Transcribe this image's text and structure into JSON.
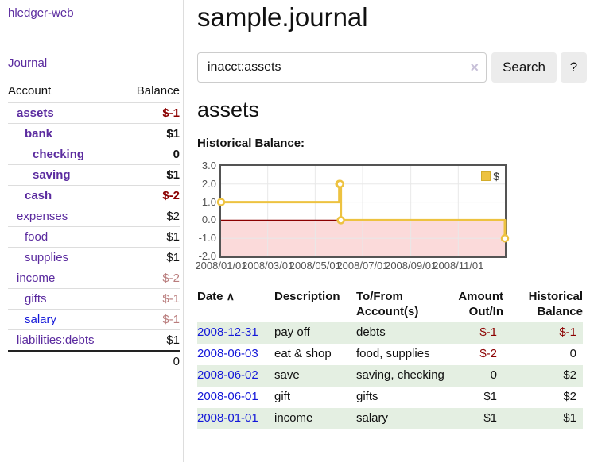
{
  "colors": {
    "purple": "#5b2b9f",
    "blue": "#1317d9",
    "negative": "#8b0000",
    "negative_dim": "#b97c7c",
    "rowgreen": "#e4efe2",
    "rowline": "#dddddd",
    "divider": "#dddddd",
    "gold": "#EDC240",
    "chartborder": "#545454",
    "tick": "#545454"
  },
  "sidebar": {
    "app_title": "hledger-web",
    "nav": {
      "journal_label": "Journal"
    },
    "accounts_table": {
      "headers": {
        "account": "Account",
        "balance": "Balance"
      },
      "rows": [
        {
          "name": "assets",
          "balance": "$-1"
        },
        {
          "name": "bank",
          "balance": "$1"
        },
        {
          "name": "checking",
          "balance": "0"
        },
        {
          "name": "saving",
          "balance": "$1"
        },
        {
          "name": "cash",
          "balance": "$-2"
        },
        {
          "name": "expenses",
          "balance": "$2"
        },
        {
          "name": "food",
          "balance": "$1"
        },
        {
          "name": "supplies",
          "balance": "$1"
        },
        {
          "name": "income",
          "balance": "$-2"
        },
        {
          "name": "gifts",
          "balance": "$-1"
        },
        {
          "name": "salary",
          "balance": "$-1"
        },
        {
          "name": "liabilities:debts",
          "balance": "$1"
        }
      ],
      "total": "0"
    }
  },
  "main": {
    "page_title": "sample.journal",
    "search": {
      "query": "inacct:assets",
      "clear_icon": "×",
      "search_button_label": "Search",
      "help_button_label": "?"
    },
    "account_heading": "assets",
    "chart": {
      "title": "Historical Balance:",
      "legend": {
        "label": "$"
      },
      "chart_data": {
        "type": "line",
        "style": "step",
        "title": "Historical Balance:",
        "legend_position": "top-right",
        "series": [
          {
            "name": "$",
            "points": [
              [
                "2008-01-01",
                1
              ],
              [
                "2008-06-01",
                2
              ],
              [
                "2008-06-02",
                2
              ],
              [
                "2008-06-03",
                0
              ],
              [
                "2008-12-31",
                -1
              ]
            ]
          }
        ],
        "x_start": "2008/01/01",
        "x_ticks": [
          "2008/01/01",
          "2008/03/01",
          "2008/05/01",
          "2008/07/01",
          "2008/09/01",
          "2008/11/01"
        ],
        "y_ticks": [
          3.0,
          2.0,
          1.0,
          0.0,
          -1.0,
          -2.0
        ],
        "ylim": [
          -2,
          3
        ],
        "xlim_days": [
          0,
          365
        ],
        "grid": true,
        "negative_region_shaded": true,
        "line_color": "#EDC240",
        "negative_fill": "#fbdada",
        "zero_line_color": "#8b0000",
        "grid_color": "#e8e8e8"
      }
    },
    "register": {
      "headers": {
        "date": "Date",
        "sort_icon": "∧",
        "description": "Description",
        "account": "To/From Account(s)",
        "amount": "Amount Out/In",
        "balance": "Historical Balance"
      },
      "rows": [
        {
          "date": "2008-12-31",
          "description": "pay off",
          "account": "debts",
          "amount": "$-1",
          "balance": "$-1"
        },
        {
          "date": "2008-06-03",
          "description": "eat & shop",
          "account": "food, supplies",
          "amount": "$-2",
          "balance": "0"
        },
        {
          "date": "2008-06-02",
          "description": "save",
          "account": "saving, checking",
          "amount": "0",
          "balance": "$2"
        },
        {
          "date": "2008-06-01",
          "description": "gift",
          "account": "gifts",
          "amount": "$1",
          "balance": "$2"
        },
        {
          "date": "2008-01-01",
          "description": "income",
          "account": "salary",
          "amount": "$1",
          "balance": "$1"
        }
      ]
    }
  }
}
